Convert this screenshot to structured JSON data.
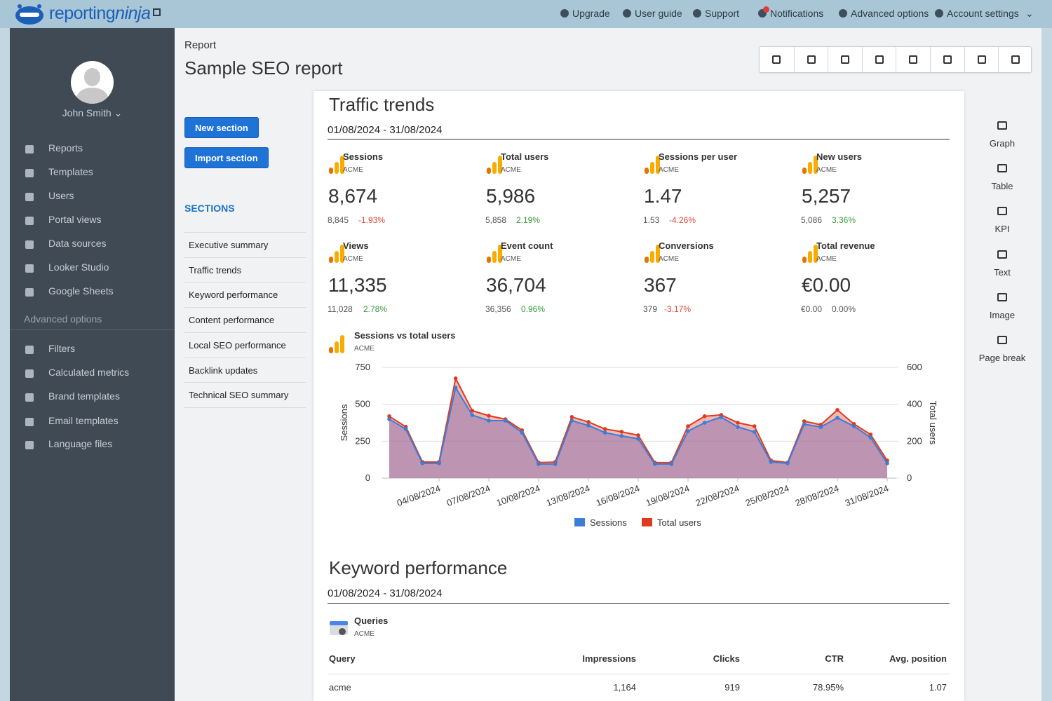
{
  "topbar": {
    "logo": {
      "part1": "reporting",
      "part2": "ninja"
    },
    "nav": [
      "Upgrade",
      "User guide",
      "Support",
      "Notifications",
      "Advanced options",
      "Account settings"
    ]
  },
  "sidebar": {
    "user": "John Smith",
    "menu": [
      "Reports",
      "Templates",
      "Users",
      "Portal views",
      "Data sources",
      "Looker Studio",
      "Google Sheets"
    ],
    "advanced_heading": "Advanced options",
    "advanced_menu": [
      "Filters",
      "Calculated metrics",
      "Brand templates",
      "Email templates",
      "Language files"
    ]
  },
  "header": {
    "breadcrumb": "Report",
    "title": "Sample SEO report"
  },
  "buttons": [
    "New section",
    "Import section"
  ],
  "sections": {
    "heading": "SECTIONS",
    "items": [
      "Executive summary",
      "Traffic trends",
      "Keyword performance",
      "Content performance",
      "Local SEO performance",
      "Backlink updates",
      "Technical SEO summary"
    ]
  },
  "palette": [
    "Graph",
    "Table",
    "KPI",
    "Text",
    "Image",
    "Page break"
  ],
  "traffic": {
    "title": "Traffic trends",
    "date_range": "01/08/2024 - 31/08/2024",
    "kpis": [
      {
        "name": "Sessions",
        "source": "ACME",
        "value": "8,674",
        "previous": "8,845",
        "change": "-1.93%",
        "change_color": "#e0463a"
      },
      {
        "name": "Total users",
        "source": "ACME",
        "value": "5,986",
        "previous": "5,858",
        "change": "2.19%",
        "change_color": "#3a9a3a"
      },
      {
        "name": "Sessions per user",
        "source": "ACME",
        "value": "1.47",
        "previous": "1.53",
        "change": "-4.26%",
        "change_color": "#e0463a"
      },
      {
        "name": "New users",
        "source": "ACME",
        "value": "5,257",
        "previous": "5,086",
        "change": "3.36%",
        "change_color": "#3a9a3a"
      },
      {
        "name": "Views",
        "source": "ACME",
        "value": "11,335",
        "previous": "11,028",
        "change": "2.78%",
        "change_color": "#3a9a3a"
      },
      {
        "name": "Event count",
        "source": "ACME",
        "value": "36,704",
        "previous": "36,356",
        "change": "0.96%",
        "change_color": "#3a9a3a"
      },
      {
        "name": "Conversions",
        "source": "ACME",
        "value": "367",
        "previous": "379",
        "change": "-3.17%",
        "change_color": "#e0463a"
      },
      {
        "name": "Total revenue",
        "source": "ACME",
        "value": "€0.00",
        "previous": "€0.00",
        "change": "0.00%",
        "change_color": "#555555"
      }
    ]
  },
  "chart_data": {
    "type": "area",
    "title": "Sessions vs total users",
    "subtitle": "ACME",
    "categories": [
      null,
      null,
      null,
      "04/08/2024",
      null,
      null,
      "07/08/2024",
      null,
      null,
      "10/08/2024",
      null,
      null,
      "13/08/2024",
      null,
      null,
      "16/08/2024",
      null,
      null,
      "19/08/2024",
      null,
      null,
      "22/08/2024",
      null,
      null,
      "25/08/2024",
      null,
      null,
      "28/08/2024",
      null,
      null,
      "31/08/2024"
    ],
    "ylabel": "Sessions",
    "y2label": "Total users",
    "ylim": [
      0,
      750
    ],
    "yticks": [
      0,
      250,
      500,
      750
    ],
    "y2lim": [
      0,
      600
    ],
    "y2ticks": [
      0,
      200,
      400,
      600
    ],
    "grid": true,
    "legend": "bottom",
    "series": [
      {
        "name": "Sessions",
        "color": "#3b7dd8",
        "values": [
          399,
          332,
          100,
          100,
          612,
          427,
          389,
          389,
          308,
          95,
          95,
          389,
          356,
          308,
          285,
          266,
          95,
          95,
          318,
          375,
          413,
          346,
          313,
          109,
          100,
          365,
          346,
          408,
          351,
          275,
          100
        ]
      },
      {
        "name": "Total users",
        "color": "#e03a1e",
        "axis": "y2",
        "values": [
          335,
          278,
          87,
          87,
          540,
          365,
          338,
          319,
          259,
          84,
          87,
          331,
          304,
          266,
          251,
          232,
          84,
          84,
          281,
          335,
          342,
          300,
          281,
          95,
          84,
          308,
          289,
          369,
          293,
          236,
          95
        ]
      }
    ]
  },
  "keywords": {
    "title": "Keyword performance",
    "date_range": "01/08/2024 - 31/08/2024",
    "widget": {
      "title": "Queries",
      "source": "ACME"
    },
    "table": {
      "columns": [
        "Query",
        "Impressions",
        "Clicks",
        "CTR",
        "Avg. position"
      ],
      "rows": [
        [
          "acme",
          "1,164",
          "919",
          "78.95%",
          "1.07"
        ]
      ]
    }
  }
}
